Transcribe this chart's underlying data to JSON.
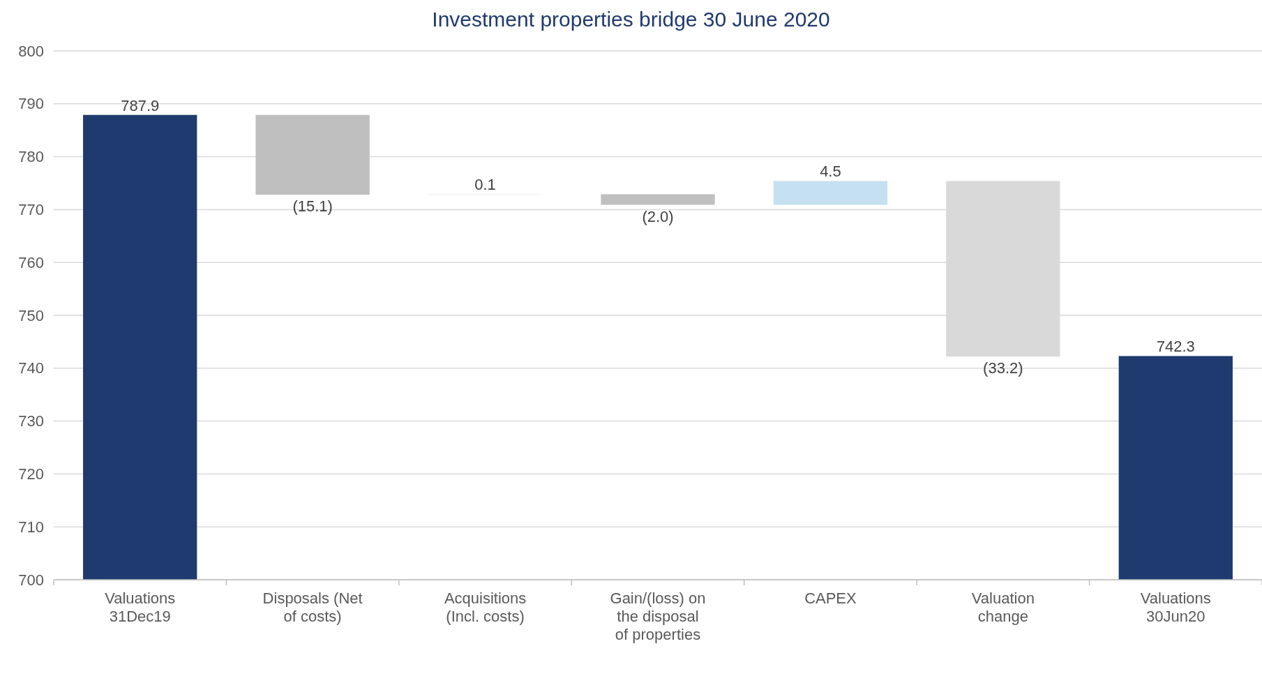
{
  "chart_data": {
    "type": "bar",
    "title": "Investment properties bridge 30 June 2020",
    "categories": [
      "Valuations 31Dec19",
      "Disposals (Net of costs)",
      "Acquisitions (Incl. costs)",
      "Gain/(loss) on the disposal of properties",
      "CAPEX",
      "Valuation change",
      "Valuations 30Jun20"
    ],
    "values": [
      787.9,
      -15.1,
      0.1,
      -2.0,
      4.5,
      -33.2,
      742.3
    ],
    "base": [
      0,
      787.9,
      772.8,
      772.9,
      770.9,
      775.4,
      0
    ],
    "colors": [
      "#1f3a6e",
      "#bfbfbf",
      "#eeeeee",
      "#bfbfbf",
      "#c5e0f0",
      "#d9d9d9",
      "#1f3a6e"
    ],
    "value_labels": [
      "787.9",
      "(15.1)",
      "0.1",
      "(2.0)",
      "4.5",
      "(33.2)",
      "742.3"
    ],
    "ylim": [
      700,
      800
    ],
    "yticks": [
      700,
      710,
      720,
      730,
      740,
      750,
      760,
      770,
      780,
      790,
      800
    ],
    "grid": "y"
  }
}
